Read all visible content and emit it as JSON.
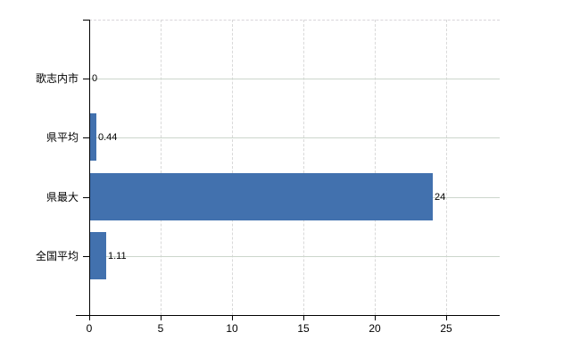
{
  "chart_data": {
    "type": "bar",
    "orientation": "horizontal",
    "title": "",
    "xlabel": "",
    "ylabel": "",
    "categories": [
      "歌志内市",
      "県平均",
      "県最大",
      "全国平均"
    ],
    "values": [
      0,
      0.44,
      24,
      1.11
    ],
    "value_labels": [
      "0",
      "0.44",
      "24",
      "1.11"
    ],
    "x_ticks": [
      0,
      5,
      10,
      15,
      20,
      25
    ],
    "x_tick_labels": [
      "0",
      "5",
      "10",
      "15",
      "20",
      "25"
    ],
    "xlim": [
      0,
      28.75
    ],
    "grid": true,
    "legend": false,
    "colors": {
      "bar": "#4271ae",
      "axis": "#000000",
      "vertical_grid": "#d9d9d9",
      "horizontal_grid": "#ccd6cc",
      "top_border": "#d9d5da",
      "text": "#000000",
      "background": "#ffffff"
    }
  }
}
